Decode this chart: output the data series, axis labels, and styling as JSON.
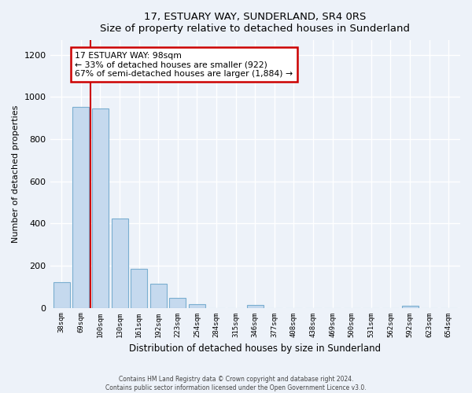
{
  "title": "17, ESTUARY WAY, SUNDERLAND, SR4 0RS",
  "subtitle": "Size of property relative to detached houses in Sunderland",
  "xlabel": "Distribution of detached houses by size in Sunderland",
  "ylabel": "Number of detached properties",
  "bar_labels": [
    "38sqm",
    "69sqm",
    "100sqm",
    "130sqm",
    "161sqm",
    "192sqm",
    "223sqm",
    "254sqm",
    "284sqm",
    "315sqm",
    "346sqm",
    "377sqm",
    "408sqm",
    "438sqm",
    "469sqm",
    "500sqm",
    "531sqm",
    "562sqm",
    "592sqm",
    "623sqm",
    "654sqm"
  ],
  "bar_values": [
    120,
    955,
    945,
    425,
    185,
    113,
    47,
    18,
    0,
    0,
    15,
    0,
    0,
    0,
    0,
    0,
    0,
    0,
    10,
    0,
    0
  ],
  "bar_color": "#c5d9ee",
  "bar_edge_color": "#7aaed0",
  "highlight_color": "#cc0000",
  "annotation_title": "17 ESTUARY WAY: 98sqm",
  "annotation_line1": "← 33% of detached houses are smaller (922)",
  "annotation_line2": "67% of semi-detached houses are larger (1,884) →",
  "annotation_box_color": "#ffffff",
  "annotation_box_edge_color": "#cc0000",
  "ylim": [
    0,
    1270
  ],
  "yticks": [
    0,
    200,
    400,
    600,
    800,
    1000,
    1200
  ],
  "footer_line1": "Contains HM Land Registry data © Crown copyright and database right 2024.",
  "footer_line2": "Contains public sector information licensed under the Open Government Licence v3.0.",
  "background_color": "#edf2f9",
  "grid_color": "#ffffff"
}
